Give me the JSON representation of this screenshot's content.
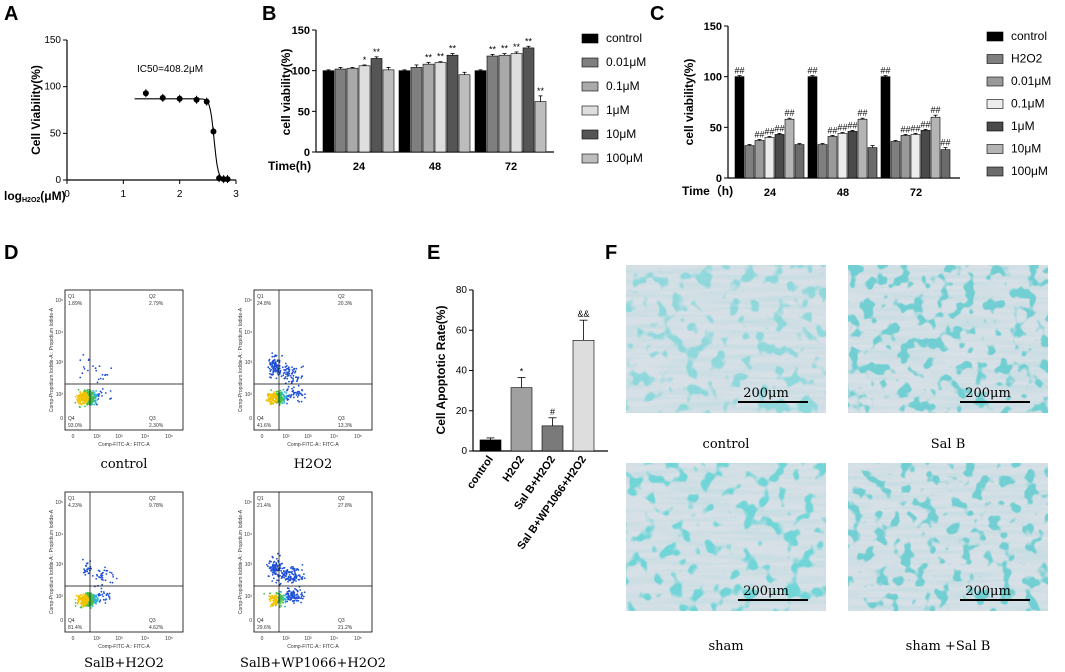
{
  "chart_data": [
    {
      "panel": "A",
      "type": "scatter",
      "ylabel": "Cell Viability(%)",
      "xlabel": "log H2O2 (μM)",
      "xlabel_prefix": "log",
      "xlabel_sub": "H2O2",
      "xlabel_suffix": "(μM)",
      "annotation": "IC50=408.2μM",
      "xlim": [
        0,
        3
      ],
      "ylim": [
        0,
        150
      ],
      "xticks": [
        "0",
        "1",
        "2",
        "3"
      ],
      "yticks": [
        "0",
        "50",
        "100",
        "150"
      ],
      "points": [
        {
          "x": 1.4,
          "y": 93
        },
        {
          "x": 1.7,
          "y": 88
        },
        {
          "x": 2.0,
          "y": 87
        },
        {
          "x": 2.3,
          "y": 86
        },
        {
          "x": 2.48,
          "y": 84
        },
        {
          "x": 2.6,
          "y": 52
        },
        {
          "x": 2.7,
          "y": 2
        },
        {
          "x": 2.78,
          "y": 1
        },
        {
          "x": 2.85,
          "y": 1
        }
      ],
      "fit": {
        "top": 87,
        "bottom": 0,
        "log_ic50": 2.611,
        "hill": -12
      }
    },
    {
      "panel": "B",
      "type": "bar",
      "ylabel": "cell viability(%)",
      "xlabel": "Time(h)",
      "categories": [
        "24",
        "48",
        "72"
      ],
      "ylim": [
        0,
        150
      ],
      "yticks": [
        "0",
        "50",
        "100",
        "150"
      ],
      "series": [
        {
          "name": "control",
          "color": "#000000",
          "values": [
            100,
            100,
            100
          ],
          "errors": [
            1,
            1,
            1
          ],
          "sig": [
            "",
            "",
            ""
          ]
        },
        {
          "name": "0.01μM",
          "color": "#7f7f7f",
          "values": [
            102,
            104,
            118
          ],
          "errors": [
            2,
            3,
            2
          ],
          "sig": [
            "",
            "",
            "**"
          ]
        },
        {
          "name": "0.1μM",
          "color": "#a9a9a9",
          "values": [
            103,
            108,
            119
          ],
          "errors": [
            1,
            2,
            2
          ],
          "sig": [
            "",
            "**",
            "**"
          ]
        },
        {
          "name": "1μM",
          "color": "#dedede",
          "values": [
            106,
            110,
            121
          ],
          "errors": [
            1,
            1,
            2
          ],
          "sig": [
            "*",
            "**",
            "**"
          ]
        },
        {
          "name": "10μM",
          "color": "#555555",
          "values": [
            115,
            119,
            128
          ],
          "errors": [
            2,
            2,
            2
          ],
          "sig": [
            "**",
            "**",
            "**"
          ]
        },
        {
          "name": "100μM",
          "color": "#bdbdbd",
          "values": [
            101,
            95,
            62
          ],
          "errors": [
            3,
            3,
            7
          ],
          "sig": [
            "",
            "",
            "**"
          ]
        }
      ]
    },
    {
      "panel": "C",
      "type": "bar",
      "ylabel": "cell viability(%)",
      "xlabel": "Time（h)",
      "categories": [
        "24",
        "48",
        "72"
      ],
      "ylim": [
        0,
        150
      ],
      "yticks": [
        "0",
        "50",
        "100",
        "150"
      ],
      "series": [
        {
          "name": "control",
          "color": "#000000",
          "values": [
            100,
            100,
            100
          ],
          "errors": [
            1,
            1,
            1
          ],
          "sig": [
            "##",
            "##",
            "##"
          ]
        },
        {
          "name": "H2O2",
          "color": "#7f7f7f",
          "values": [
            32,
            33,
            36
          ],
          "errors": [
            1,
            1,
            1
          ],
          "sig": [
            "",
            "",
            ""
          ]
        },
        {
          "name": "0.01μM",
          "color": "#9a9a9a",
          "values": [
            37,
            41,
            42
          ],
          "errors": [
            1,
            1,
            1
          ],
          "sig": [
            "##",
            "##",
            "##"
          ]
        },
        {
          "name": "0.1μM",
          "color": "#ececec",
          "values": [
            40,
            44,
            43
          ],
          "errors": [
            1,
            1,
            1
          ],
          "sig": [
            "##",
            "##",
            "##"
          ]
        },
        {
          "name": "1μM",
          "color": "#4a4a4a",
          "values": [
            43,
            46,
            47
          ],
          "errors": [
            1,
            1,
            1
          ],
          "sig": [
            "##",
            "##",
            "##"
          ]
        },
        {
          "name": "10μM",
          "color": "#b4b4b4",
          "values": [
            58,
            58,
            60
          ],
          "errors": [
            1,
            1,
            2
          ],
          "sig": [
            "##",
            "##",
            "##"
          ]
        },
        {
          "name": "100μM",
          "color": "#6b6b6b",
          "values": [
            33,
            30,
            28
          ],
          "errors": [
            1,
            2,
            2
          ],
          "sig": [
            "",
            "",
            "##"
          ]
        }
      ]
    },
    {
      "panel": "E",
      "type": "bar",
      "ylabel": "Cell Apoptotic Rate(%)",
      "ylim": [
        0,
        80
      ],
      "yticks": [
        "0",
        "20",
        "40",
        "60",
        "80"
      ],
      "categories": [
        "control",
        "H2O2",
        "Sal B+H2O2",
        "Sal B+WP1066+H2O2"
      ],
      "values": [
        5.5,
        31.5,
        12.5,
        55
      ],
      "errors": [
        1,
        5,
        4,
        10
      ],
      "colors": [
        "#000000",
        "#a0a0a0",
        "#7a7a7a",
        "#dddddd"
      ],
      "sig": [
        "",
        "*",
        "#",
        "&&"
      ]
    }
  ],
  "flow_panels": [
    {
      "caption": "control",
      "q1": "Q1",
      "q1v": "1.89%",
      "q2": "Q2",
      "q2v": "2.79%",
      "q3": "Q3",
      "q3v": "2.30%",
      "q4": "Q4",
      "q4v": "93.0%"
    },
    {
      "caption": "H2O2",
      "q1": "Q1",
      "q1v": "24.8%",
      "q2": "Q2",
      "q2v": "20.3%",
      "q3": "Q3",
      "q3v": "13.3%",
      "q4": "Q4",
      "q4v": "41.6%"
    },
    {
      "caption": "SalB+H2O2",
      "q1": "Q1",
      "q1v": "4.23%",
      "q2": "Q2",
      "q2v": "9.78%",
      "q3": "Q3",
      "q3v": "4.62%",
      "q4": "Q4",
      "q4v": "81.4%"
    },
    {
      "caption": "SalB+WP1066+H2O2",
      "q1": "Q1",
      "q1v": "21.4%",
      "q2": "Q2",
      "q2v": "27.8%",
      "q3": "Q3",
      "q3v": "21.2%",
      "q4": "Q4",
      "q4v": "29.6%"
    }
  ],
  "flow_axes": {
    "ylabel": "Comp-Propidium Iodide-A:: Propidium Iodide-A",
    "xlabel": "Comp-FITC-A:: FITC-A",
    "y_ticks": [
      "10⁵",
      "10⁴",
      "10³",
      "10²",
      "0"
    ],
    "x_ticks": [
      "0",
      "10²",
      "10³",
      "10⁴",
      "10⁵"
    ]
  },
  "micrographs": [
    {
      "caption": "control",
      "scale": "200μm"
    },
    {
      "caption": "Sal B",
      "scale": "200μm"
    },
    {
      "caption": "sham",
      "scale": "200μm"
    },
    {
      "caption": "sham +Sal B",
      "scale": "200μm"
    }
  ],
  "panel_letters": [
    "A",
    "B",
    "C",
    "D",
    "E",
    "F"
  ]
}
